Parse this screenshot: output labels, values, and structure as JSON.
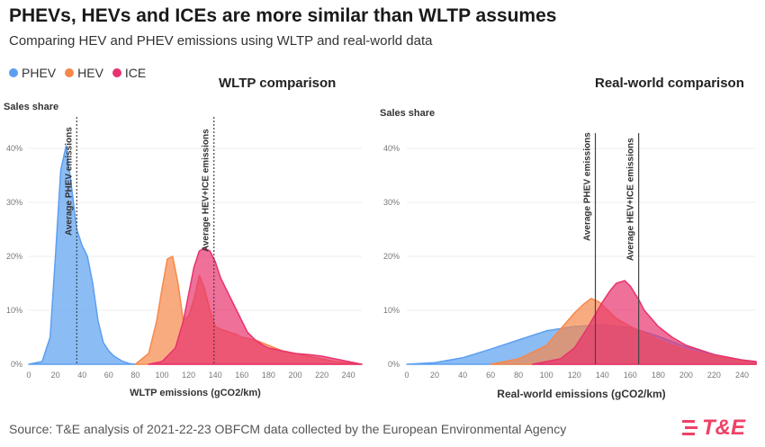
{
  "title": "PHEVs, HEVs and ICEs are more similar than WLTP assumes",
  "subtitle": "Comparing HEV and PHEV emissions using WLTP and real-world data",
  "legend": [
    {
      "label": "PHEV",
      "color": "#5b9ff0"
    },
    {
      "label": "HEV",
      "color": "#f7884a"
    },
    {
      "label": "ICE",
      "color": "#e8336d"
    }
  ],
  "source": "Source: T&E analysis of 2021-22-23 OBFCM data collected by the European Environmental Agency",
  "logo": {
    "text": "T&E",
    "color": "#ee4266"
  },
  "chart_data": [
    {
      "type": "area",
      "title": "WLTP comparison",
      "xlabel": "WLTP emissions (gCO2/km)",
      "ylabel": "Sales share",
      "xlim": [
        0,
        250
      ],
      "ylim": [
        0,
        45
      ],
      "xticks": [
        0,
        20,
        40,
        60,
        80,
        100,
        120,
        140,
        160,
        180,
        200,
        220,
        240
      ],
      "yticks": [
        0,
        10,
        20,
        30,
        40
      ],
      "ytick_labels": [
        "0%",
        "10%",
        "20%",
        "30%",
        "40%"
      ],
      "series": [
        {
          "name": "PHEV",
          "x": [
            0,
            10,
            16,
            20,
            24,
            28,
            32,
            36,
            40,
            44,
            48,
            52,
            56,
            60,
            64,
            70,
            76,
            80
          ],
          "y": [
            0,
            0.5,
            5,
            20,
            36,
            40.5,
            33,
            25,
            22,
            20,
            15,
            8,
            4,
            2.5,
            1.5,
            0.6,
            0.1,
            0
          ]
        },
        {
          "name": "HEV",
          "x": [
            80,
            90,
            96,
            100,
            104,
            108,
            112,
            116,
            120,
            124,
            128,
            132,
            136,
            140,
            144,
            150,
            156,
            160,
            170,
            180,
            190,
            200,
            210,
            220,
            230,
            250
          ],
          "y": [
            0,
            2,
            8,
            14,
            19.5,
            20,
            15,
            8,
            9,
            12,
            16.5,
            14,
            10,
            7,
            6.5,
            6,
            5.5,
            5,
            4.5,
            3.5,
            2.5,
            2,
            1.5,
            1,
            0.5,
            0
          ]
        },
        {
          "name": "ICE",
          "x": [
            90,
            100,
            110,
            116,
            120,
            124,
            128,
            132,
            136,
            140,
            144,
            148,
            152,
            156,
            160,
            164,
            170,
            176,
            180,
            190,
            200,
            210,
            220,
            230,
            240,
            250
          ],
          "y": [
            0,
            0.5,
            3,
            8,
            13,
            18,
            21,
            21.5,
            21,
            19,
            16,
            14,
            12,
            10,
            8,
            6,
            4.5,
            3.5,
            3,
            2.5,
            2,
            1.8,
            1.5,
            1,
            0.5,
            0
          ]
        }
      ],
      "annotations": [
        {
          "label": "Average PHEV emissions",
          "x": 36
        },
        {
          "label": "Average HEV+ICE emissions",
          "x": 139
        }
      ]
    },
    {
      "type": "area",
      "title": "Real-world comparison",
      "xlabel": "Real-world emissions (gCO2/km)",
      "ylabel": "Sales share",
      "xlim": [
        0,
        250
      ],
      "ylim": [
        0,
        45
      ],
      "xticks": [
        0,
        20,
        40,
        60,
        80,
        100,
        120,
        140,
        160,
        180,
        200,
        220,
        240
      ],
      "yticks": [
        0,
        10,
        20,
        30,
        40
      ],
      "ytick_labels": [
        "0%",
        "10%",
        "20%",
        "30%",
        "40%"
      ],
      "series": [
        {
          "name": "PHEV",
          "x": [
            0,
            20,
            40,
            60,
            80,
            100,
            120,
            140,
            160,
            180,
            200,
            220,
            240,
            250
          ],
          "y": [
            0,
            0.3,
            1.2,
            2.8,
            4.5,
            6.2,
            7,
            7.3,
            6.8,
            5.2,
            3.2,
            1.8,
            0.8,
            0.5
          ]
        },
        {
          "name": "HEV",
          "x": [
            60,
            80,
            100,
            110,
            120,
            126,
            132,
            138,
            144,
            150,
            160,
            170,
            180,
            200,
            220,
            240,
            250
          ],
          "y": [
            0,
            1,
            3.5,
            6.5,
            9.5,
            11,
            12.2,
            11.5,
            10,
            8.5,
            7,
            5.8,
            4.5,
            2.6,
            1.5,
            0.7,
            0.4
          ]
        },
        {
          "name": "ICE",
          "x": [
            90,
            110,
            120,
            130,
            140,
            146,
            150,
            156,
            160,
            166,
            170,
            180,
            190,
            200,
            220,
            240,
            250
          ],
          "y": [
            0,
            1,
            3,
            7,
            11.5,
            13.8,
            15,
            15.5,
            14.5,
            12,
            10,
            7,
            5,
            3.5,
            1.8,
            0.8,
            0.5
          ]
        }
      ],
      "annotations": [
        {
          "label": "Average PHEV emissions",
          "x": 135
        },
        {
          "label": "Average HEV+ICE emissions",
          "x": 166
        }
      ]
    }
  ]
}
